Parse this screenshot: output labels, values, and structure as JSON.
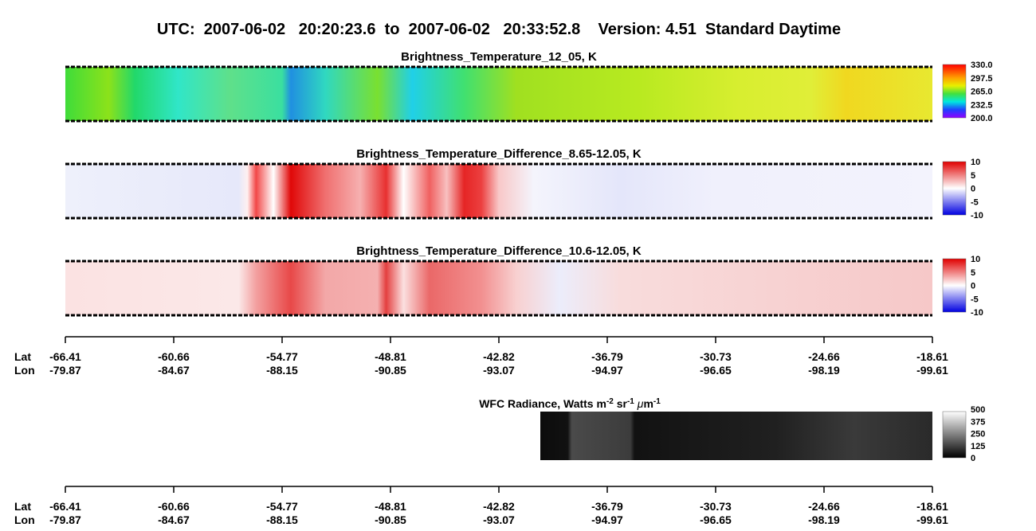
{
  "title": "UTC:  2007-06-02   20:20:23.6  to  2007-06-02   20:33:52.8    Version: 4.51  Standard Daytime",
  "panels": [
    {
      "title": "Brightness_Temperature_12_05, K",
      "colorbar_ticks": [
        "330.0",
        "297.5",
        "265.0",
        "232.5",
        "200.0"
      ]
    },
    {
      "title": "Brightness_Temperature_Difference_8.65-12.05, K",
      "colorbar_ticks": [
        "10",
        "5",
        "0",
        "-5",
        "-10"
      ]
    },
    {
      "title": "Brightness_Temperature_Difference_10.6-12.05, K",
      "colorbar_ticks": [
        "10",
        "5",
        "0",
        "-5",
        "-10"
      ]
    }
  ],
  "axes": [
    {
      "lat_label": "Lat",
      "lon_label": "Lon",
      "lat": [
        "-66.41",
        "-60.66",
        "-54.77",
        "-48.81",
        "-42.82",
        "-36.79",
        "-30.73",
        "-24.66",
        "-18.61"
      ],
      "lon": [
        "-79.87",
        "-84.67",
        "-88.15",
        "-90.85",
        "-93.07",
        "-94.97",
        "-96.65",
        "-98.19",
        "-99.61"
      ]
    },
    {
      "lat_label": "Lat",
      "lon_label": "Lon",
      "lat": [
        "-66.41",
        "-60.66",
        "-54.77",
        "-48.81",
        "-42.82",
        "-36.79",
        "-30.73",
        "-24.66",
        "-18.61"
      ],
      "lon": [
        "-79.87",
        "-84.67",
        "-88.15",
        "-90.85",
        "-93.07",
        "-94.97",
        "-96.65",
        "-98.19",
        "-99.61"
      ]
    }
  ],
  "wfc": {
    "title_parts": [
      "WFC Radiance, Watts m",
      "-2",
      " sr",
      "-1",
      " ",
      "μ",
      "m",
      "-1"
    ],
    "colorbar_ticks": [
      "500",
      "375",
      "250",
      "125",
      "0"
    ]
  }
}
